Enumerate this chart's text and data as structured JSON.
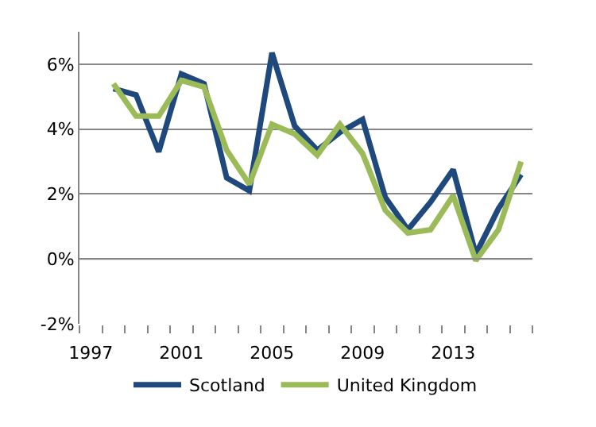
{
  "chart_data": {
    "type": "line",
    "categories": [
      "1997",
      null,
      null,
      null,
      "2001",
      null,
      null,
      null,
      "2005",
      null,
      null,
      null,
      "2009",
      null,
      null,
      null,
      "2013",
      null,
      null,
      null
    ],
    "series": [
      {
        "name": "Scotland",
        "color": "#1f497d",
        "values": [
          null,
          5.25,
          5.05,
          3.3,
          5.7,
          5.4,
          2.5,
          2.1,
          6.35,
          4.1,
          3.35,
          3.9,
          4.3,
          1.9,
          0.9,
          1.75,
          2.75,
          0.15,
          1.55,
          2.6
        ]
      },
      {
        "name": "United Kingdom",
        "color": "#9bbb59",
        "values": [
          null,
          5.4,
          4.4,
          4.4,
          5.5,
          5.3,
          3.35,
          2.3,
          4.15,
          3.85,
          3.2,
          4.15,
          3.25,
          1.5,
          0.8,
          0.9,
          1.95,
          -0.05,
          0.9,
          3.0
        ]
      }
    ],
    "ylim": [
      -2,
      7
    ],
    "yticks": [
      {
        "value": -2,
        "label": "-2%"
      },
      {
        "value": 0,
        "label": "0%"
      },
      {
        "value": 2,
        "label": "2%"
      },
      {
        "value": 4,
        "label": "4%"
      },
      {
        "value": 6,
        "label": "6%"
      }
    ],
    "grid": "y",
    "legend": "bottom",
    "marker": "none",
    "line_style": "solid"
  }
}
